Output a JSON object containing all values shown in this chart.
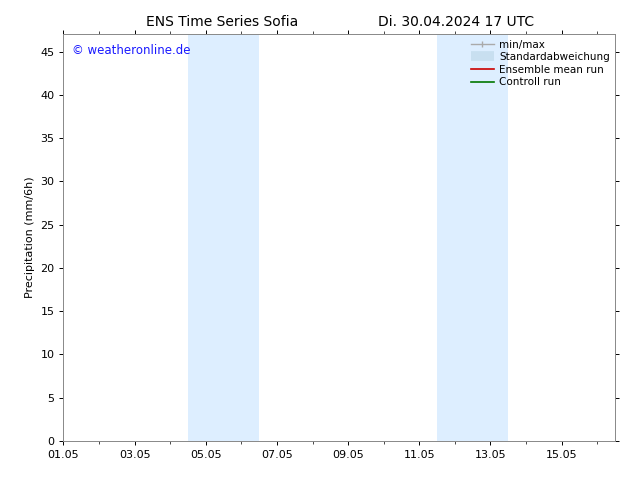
{
  "title_left": "ENS Time Series Sofia",
  "title_right": "Di. 30.04.2024 17 UTC",
  "ylabel": "Precipitation (mm/6h)",
  "watermark": "© weatheronline.de",
  "watermark_color": "#1a1aff",
  "xlim_start": 0.0,
  "xlim_end": 15.5,
  "ylim": [
    0,
    47
  ],
  "yticks": [
    0,
    5,
    10,
    15,
    20,
    25,
    30,
    35,
    40,
    45
  ],
  "xtick_labels": [
    "01.05",
    "03.05",
    "05.05",
    "07.05",
    "09.05",
    "11.05",
    "13.05",
    "15.05"
  ],
  "xtick_positions": [
    0,
    2,
    4,
    6,
    8,
    10,
    12,
    14
  ],
  "shaded_regions": [
    {
      "x_start": 3.5,
      "x_end": 5.5
    },
    {
      "x_start": 10.5,
      "x_end": 12.5
    }
  ],
  "shaded_color": "#ddeeff",
  "background_color": "#ffffff",
  "title_fontsize": 10,
  "axis_fontsize": 8,
  "tick_fontsize": 8,
  "legend_fontsize": 7.5,
  "watermark_fontsize": 8.5
}
